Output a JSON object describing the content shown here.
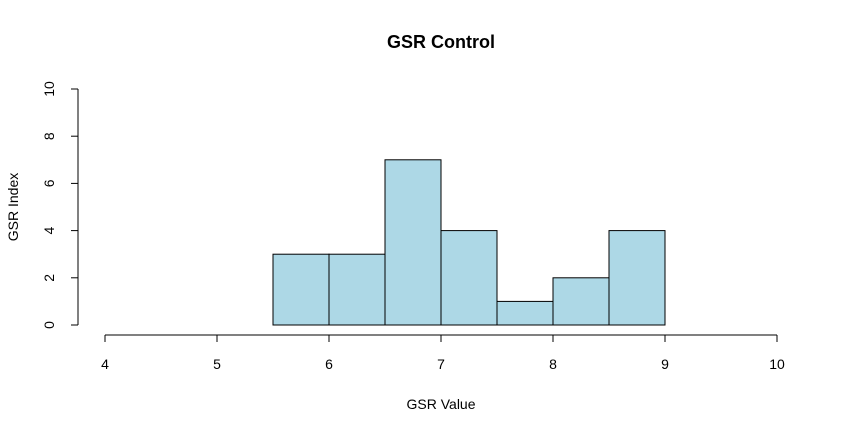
{
  "chart_data": {
    "type": "bar",
    "subtype": "histogram",
    "title": "GSR Control",
    "xlabel": "GSR Value",
    "ylabel": "GSR Index",
    "xlim": [
      4,
      10
    ],
    "ylim": [
      0,
      10
    ],
    "x_ticks": [
      4,
      5,
      6,
      7,
      8,
      9,
      10
    ],
    "y_ticks": [
      0,
      2,
      4,
      6,
      8,
      10
    ],
    "bins": [
      {
        "start": 5.5,
        "end": 6.0,
        "count": 3
      },
      {
        "start": 6.0,
        "end": 6.5,
        "count": 3
      },
      {
        "start": 6.5,
        "end": 7.0,
        "count": 7
      },
      {
        "start": 7.0,
        "end": 7.5,
        "count": 4
      },
      {
        "start": 7.5,
        "end": 8.0,
        "count": 1
      },
      {
        "start": 8.0,
        "end": 8.5,
        "count": 2
      },
      {
        "start": 8.5,
        "end": 9.0,
        "count": 4
      }
    ],
    "bar_color": "#add8e6",
    "grid": false,
    "legend": "none"
  }
}
